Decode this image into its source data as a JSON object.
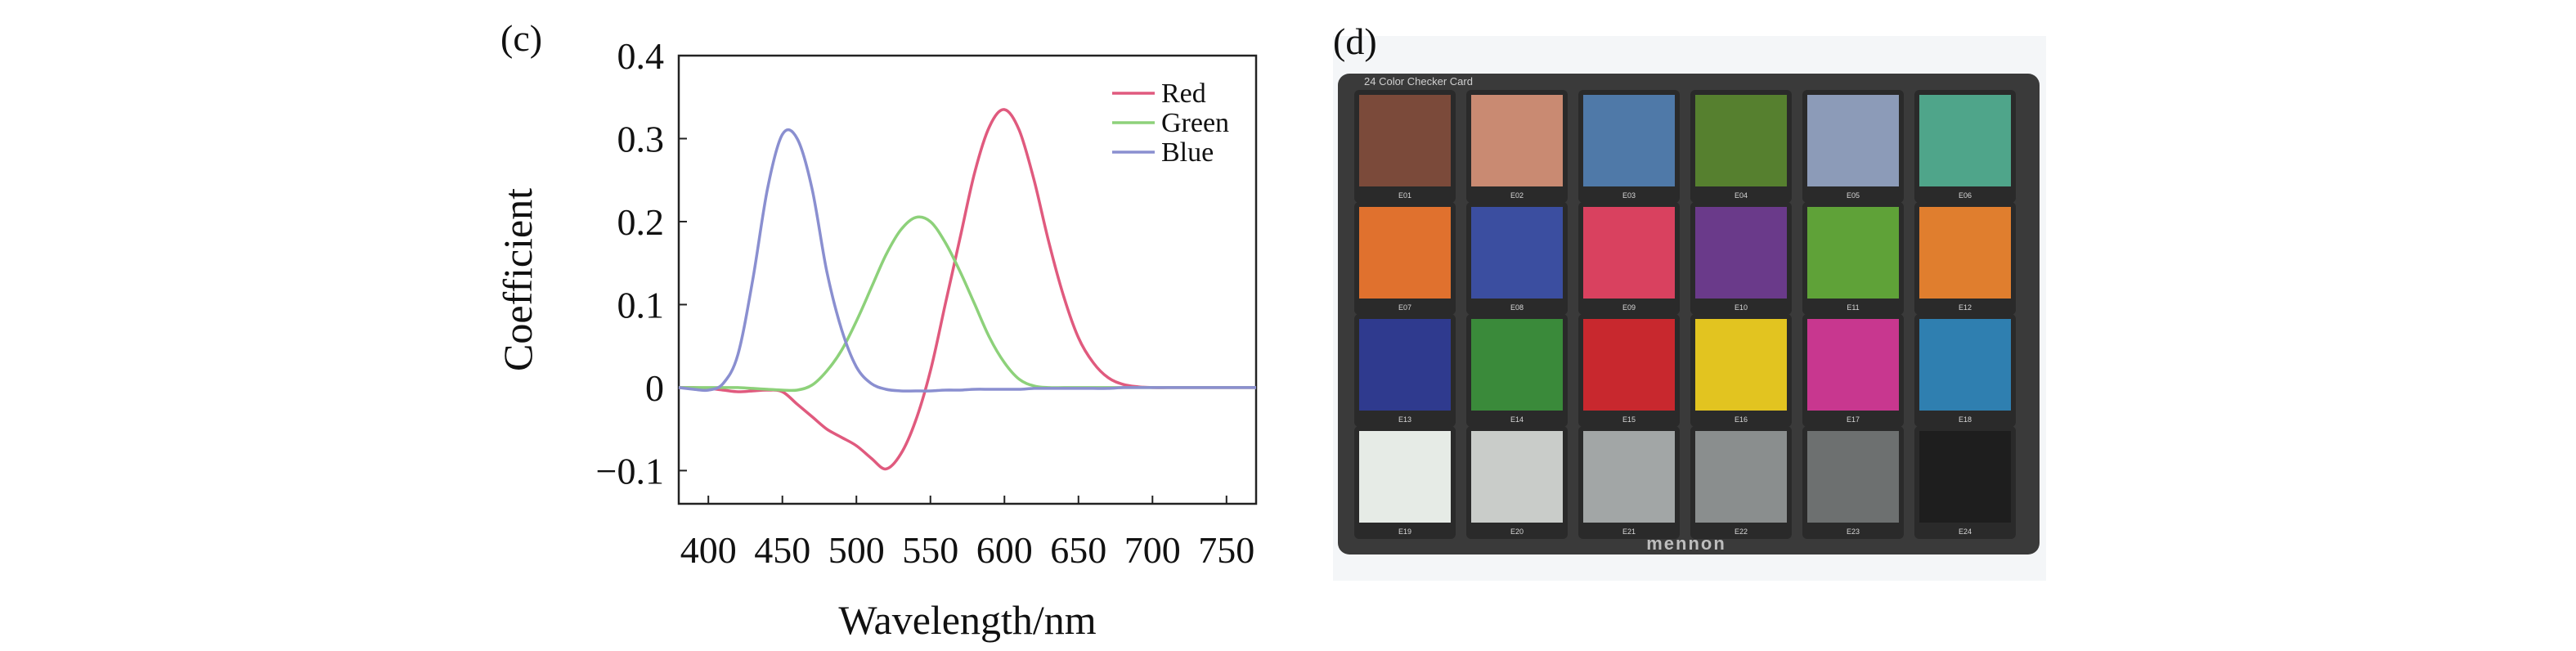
{
  "panels": {
    "c_label": "(c)",
    "d_label": "(d)"
  },
  "chart_data": {
    "type": "line",
    "title": "",
    "xlabel": "Wavelength/nm",
    "ylabel": "Coefficient",
    "xlim": [
      380,
      770
    ],
    "ylim": [
      -0.14,
      0.4
    ],
    "xticks": [
      400,
      450,
      500,
      550,
      600,
      650,
      700,
      750
    ],
    "xtick_labels": [
      "400",
      "450",
      "500",
      "550",
      "600",
      "650",
      "700",
      "750"
    ],
    "yticks": [
      -0.1,
      0,
      0.1,
      0.2,
      0.3,
      0.4
    ],
    "ytick_labels": [
      "−0.1",
      "0",
      "0.1",
      "0.2",
      "0.3",
      "0.4"
    ],
    "grid": false,
    "legend_position": "top-right",
    "x": [
      380,
      390,
      400,
      410,
      420,
      430,
      440,
      450,
      460,
      470,
      480,
      490,
      500,
      510,
      520,
      530,
      540,
      550,
      560,
      570,
      580,
      590,
      600,
      610,
      620,
      630,
      640,
      650,
      660,
      670,
      680,
      690,
      700,
      710,
      720,
      730,
      740,
      750,
      760,
      770
    ],
    "series": [
      {
        "name": "Red",
        "color": "#e05a7e",
        "values": [
          0,
          0,
          -0.001,
          -0.003,
          -0.005,
          -0.004,
          -0.003,
          -0.005,
          -0.02,
          -0.035,
          -0.05,
          -0.06,
          -0.07,
          -0.085,
          -0.098,
          -0.08,
          -0.04,
          0.02,
          0.1,
          0.18,
          0.26,
          0.315,
          0.335,
          0.31,
          0.25,
          0.175,
          0.11,
          0.06,
          0.03,
          0.012,
          0.004,
          0.001,
          0,
          0,
          0,
          0,
          0,
          0,
          0,
          0
        ]
      },
      {
        "name": "Green",
        "color": "#8dd17a",
        "values": [
          0,
          0,
          0,
          0,
          0,
          -0.001,
          -0.002,
          -0.003,
          -0.003,
          0.003,
          0.02,
          0.045,
          0.08,
          0.12,
          0.16,
          0.19,
          0.205,
          0.2,
          0.175,
          0.14,
          0.1,
          0.06,
          0.03,
          0.01,
          0.002,
          0,
          0,
          0,
          0,
          0,
          0,
          0,
          0,
          0,
          0,
          0,
          0,
          0,
          0,
          0
        ]
      },
      {
        "name": "Blue",
        "color": "#8a8fd0",
        "values": [
          0,
          -0.002,
          -0.003,
          0.005,
          0.04,
          0.13,
          0.24,
          0.305,
          0.3,
          0.24,
          0.14,
          0.07,
          0.025,
          0.005,
          -0.002,
          -0.004,
          -0.004,
          -0.004,
          -0.003,
          -0.003,
          -0.002,
          -0.002,
          -0.002,
          -0.002,
          -0.001,
          -0.001,
          -0.001,
          -0.001,
          -0.001,
          -0.001,
          0,
          0,
          0,
          0,
          0,
          0,
          0,
          0,
          0,
          0
        ]
      }
    ]
  },
  "color_card": {
    "title": "24 Color Checker Card",
    "brand": "mennon",
    "background": "#f4f6f8",
    "card_color": "#3a3a3a",
    "patches": [
      [
        "#7b4a3a",
        "#c98a72",
        "#4f79a8",
        "#56802f",
        "#8c9bb8",
        "#4fa58a"
      ],
      [
        "#e0712e",
        "#3b4ea0",
        "#d9415f",
        "#6a3a8a",
        "#5fa238",
        "#e07e2e"
      ],
      [
        "#2f3a8e",
        "#3a8a3a",
        "#c8282e",
        "#e2c420",
        "#c8378f",
        "#2f7fb0"
      ],
      [
        "#e6ebe6",
        "#c9ccc9",
        "#a2a6a6",
        "#8a8e8e",
        "#6d7070",
        "#1e1e1e"
      ]
    ],
    "patch_ids": [
      [
        "E01",
        "E02",
        "E03",
        "E04",
        "E05",
        "E06"
      ],
      [
        "E07",
        "E08",
        "E09",
        "E10",
        "E11",
        "E12"
      ],
      [
        "E13",
        "E14",
        "E15",
        "E16",
        "E17",
        "E18"
      ],
      [
        "E19",
        "E20",
        "E21",
        "E22",
        "E23",
        "E24"
      ]
    ]
  }
}
